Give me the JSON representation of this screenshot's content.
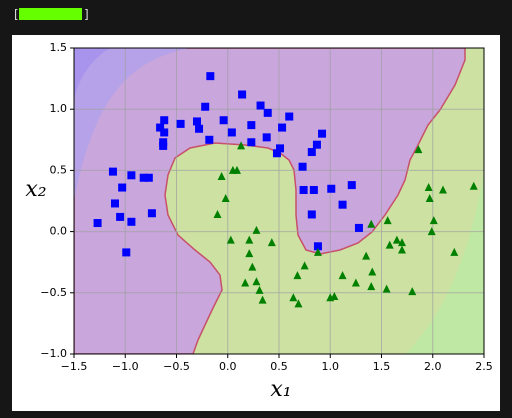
{
  "progress": {
    "open": "[",
    "close": "]"
  },
  "chart_data": {
    "type": "scatter",
    "xlabel": "x₁",
    "ylabel": "x₂",
    "xlim": [
      -1.5,
      2.5
    ],
    "ylim": [
      -1.0,
      1.5
    ],
    "xticks": [
      {
        "value": -1.5,
        "label": "−1.5"
      },
      {
        "value": -1.0,
        "label": "−1.0"
      },
      {
        "value": -0.5,
        "label": "−0.5"
      },
      {
        "value": 0.0,
        "label": "0.0"
      },
      0.5,
      {
        "value": 1.0,
        "label": "1.0"
      },
      1.5,
      {
        "value": 2.0,
        "label": "2.0"
      },
      2.5
    ],
    "yticks": [
      {
        "value": -1.0,
        "label": "−1.0"
      },
      {
        "value": -0.5,
        "label": "−0.5"
      },
      {
        "value": 0.0,
        "label": "0.0"
      },
      0.5,
      {
        "value": 1.0,
        "label": "1.0"
      },
      1.5
    ],
    "grid": true,
    "series": [
      {
        "color": "#0000ff",
        "marker": "square",
        "x": [
          -0.17,
          0.14,
          0.32,
          -0.22,
          0.39,
          0.6,
          -0.62,
          -0.46,
          -0.3,
          -0.04,
          -0.66,
          -0.62,
          -0.28,
          0.23,
          0.53,
          0.04,
          0.92,
          0.87,
          -0.63,
          -0.63,
          -0.18,
          0.38,
          0.23,
          0.51,
          0.82,
          0.48,
          0.73,
          -1.12,
          -0.94,
          -0.82,
          -0.77,
          -1.03,
          1.21,
          0.74,
          0.84,
          1.01,
          -1.1,
          1.12,
          -0.74,
          0.82,
          -1.05,
          -1.27,
          -0.94,
          1.28,
          0.88,
          -0.99
        ],
        "y": [
          1.27,
          1.12,
          1.03,
          1.02,
          0.97,
          0.94,
          0.91,
          0.88,
          0.9,
          0.91,
          0.85,
          0.81,
          0.84,
          0.87,
          0.85,
          0.81,
          0.8,
          0.71,
          0.73,
          0.7,
          0.75,
          0.77,
          0.73,
          0.68,
          0.65,
          0.64,
          0.53,
          0.49,
          0.46,
          0.44,
          0.44,
          0.36,
          0.38,
          0.34,
          0.34,
          0.35,
          0.23,
          0.22,
          0.15,
          0.14,
          0.12,
          0.07,
          0.08,
          0.03,
          -0.12,
          -0.17
        ]
      },
      {
        "color": "#008000",
        "marker": "triangle",
        "x": [
          1.86,
          0.13,
          0.05,
          0.09,
          -0.06,
          1.96,
          2.1,
          2.4,
          1.97,
          -0.02,
          -0.1,
          1.56,
          2.01,
          1.4,
          1.99,
          0.28,
          0.03,
          0.21,
          0.43,
          1.65,
          1.58,
          1.7,
          0.21,
          1.35,
          0.88,
          1.7,
          2.21,
          0.24,
          0.75,
          0.68,
          1.41,
          1.12,
          0.28,
          0.17,
          1.25,
          1.4,
          1.55,
          0.31,
          0.64,
          1.0,
          1.04,
          1.8,
          0.69,
          0.34
        ],
        "y": [
          0.67,
          0.7,
          0.5,
          0.5,
          0.45,
          0.36,
          0.34,
          0.37,
          0.27,
          0.27,
          0.14,
          0.09,
          0.09,
          0.06,
          0.0,
          0.01,
          -0.07,
          -0.07,
          -0.09,
          -0.07,
          -0.11,
          -0.09,
          -0.18,
          -0.2,
          -0.17,
          -0.15,
          -0.17,
          -0.29,
          -0.28,
          -0.36,
          -0.33,
          -0.36,
          -0.41,
          -0.42,
          -0.42,
          -0.45,
          -0.47,
          -0.48,
          -0.54,
          -0.54,
          -0.53,
          -0.49,
          -0.59,
          -0.56
        ]
      }
    ]
  }
}
